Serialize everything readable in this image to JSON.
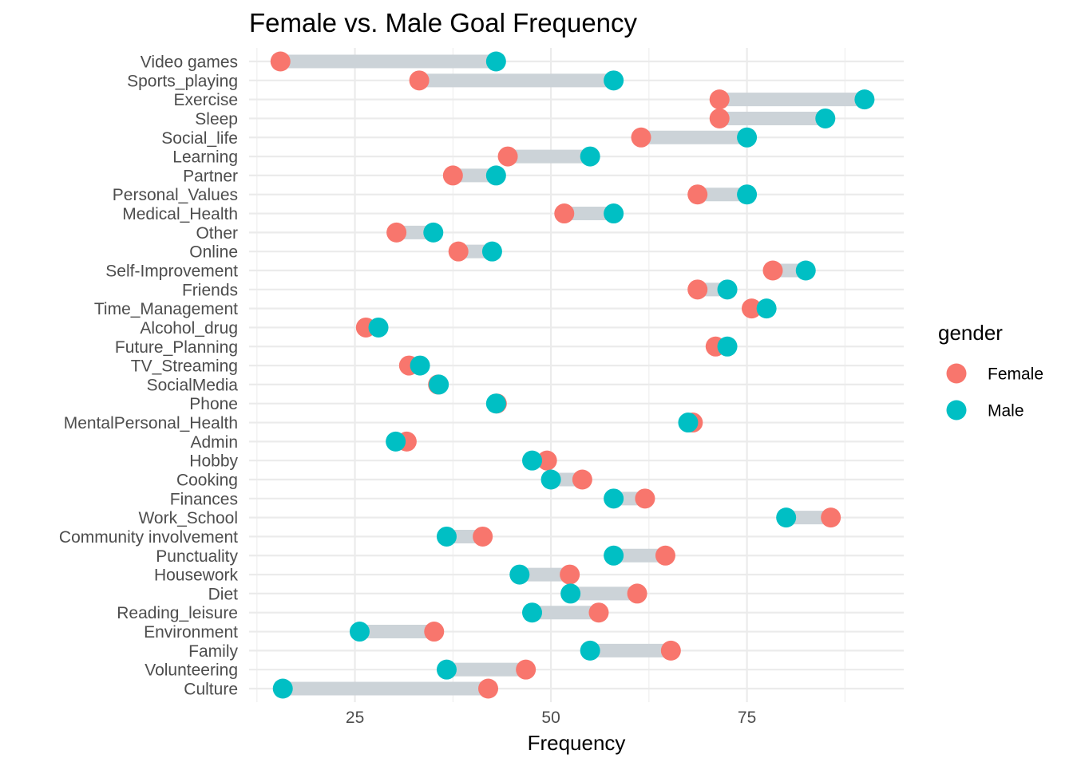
{
  "chart_data": {
    "type": "dumbbell",
    "title": "Female vs. Male Goal Frequency",
    "xlabel": "Frequency",
    "ylabel": "",
    "xlim": [
      11.5,
      95
    ],
    "xticks": [
      25,
      50,
      75
    ],
    "grid": true,
    "legend": {
      "title": "gender",
      "placement": "right"
    },
    "colors": {
      "Female": "#F8766D",
      "Male": "#00BFC4",
      "segment": "#CCD3D8",
      "grid": "#EBEBEB"
    },
    "categories": [
      "Video games",
      "Sports_playing",
      "Exercise",
      "Sleep",
      "Social_life",
      "Learning",
      "Partner",
      "Personal_Values",
      "Medical_Health",
      "Other",
      "Online",
      "Self-Improvement",
      "Friends",
      "Time_Management",
      "Alcohol_drug",
      "Future_Planning",
      "TV_Streaming",
      "SocialMedia",
      "Phone",
      "MentalPersonal_Health",
      "Admin",
      "Hobby",
      "Cooking",
      "Finances",
      "Work_School",
      "Community involvement",
      "Punctuality",
      "Housework",
      "Diet",
      "Reading_leisure",
      "Environment",
      "Family",
      "Volunteering",
      "Culture"
    ],
    "series": [
      {
        "name": "Female",
        "values": [
          15.5,
          33.2,
          71.5,
          71.5,
          61.5,
          44.5,
          37.5,
          68.7,
          51.7,
          30.3,
          38.2,
          78.3,
          68.7,
          75.6,
          26.4,
          71.0,
          31.9,
          35.6,
          43.1,
          68.1,
          31.6,
          49.5,
          54.0,
          62.0,
          85.7,
          41.3,
          64.6,
          52.4,
          61.0,
          56.1,
          35.1,
          65.3,
          46.8,
          42.0
        ]
      },
      {
        "name": "Male",
        "values": [
          43.0,
          58.0,
          90.0,
          85.0,
          75.0,
          55.0,
          43.0,
          75.0,
          58.0,
          35.0,
          42.5,
          82.5,
          72.5,
          77.5,
          28.0,
          72.5,
          33.3,
          35.7,
          43.0,
          67.5,
          30.2,
          47.6,
          50.0,
          58.0,
          80.0,
          36.7,
          58.0,
          46.0,
          52.5,
          47.6,
          25.6,
          55.0,
          36.7,
          15.8
        ]
      }
    ]
  }
}
